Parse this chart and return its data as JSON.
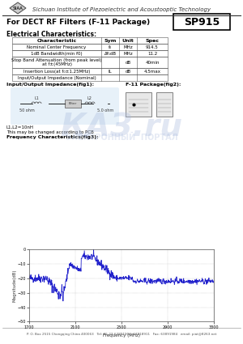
{
  "title_logo_text": "SIAA",
  "title_company": "Sichuan Institute of Piezoelectric and Acoustooptic Technology",
  "product_title": "For DECT RF Filters (F-11 Package)",
  "product_code": "SP915",
  "section_electrical": "Electrical Characteristics:",
  "table_headers": [
    "Characteristic",
    "Sym",
    "Unit",
    "Spec"
  ],
  "table_rows": [
    [
      "Nominal Center Frequency",
      "f₀",
      "MHz",
      "914.5"
    ],
    [
      "1dB Bandwidth(min f0)",
      "Δf₁dB",
      "MHz",
      "11.2"
    ],
    [
      "Stop Band Attenuation (from peak level)\nat f±(45MHz)",
      "",
      "dB",
      "40min"
    ],
    [
      "Insertion Loss(at f₀±1.25MHz)",
      "IL",
      "dB",
      "4.5max"
    ],
    [
      "Input/Output Impedance (Nominal)",
      "",
      "",
      ""
    ]
  ],
  "section_impedance": "Input/Output Impedance(fig1):",
  "section_package": "F-11 Package(fig2):",
  "circuit_note": "L1,L2=10nH",
  "circuit_note2": "This may be changed according to PCB",
  "section_freq": "Frequency Characteristics(fig3):",
  "footer": "P. O. Box 2515 Chongqing China 400063   Tel: 86-23-63891902, 63918911   Fax: 63891984   email: piat@8263.net",
  "bg_color": "#ffffff",
  "text_color": "#000000",
  "table_border_color": "#000000",
  "graph_line_color": "#2222cc",
  "graph_bg": "#ffffff",
  "graph_xlabel": "Frequency (MHz)",
  "graph_ylabel": "Magnitude(dB)",
  "graph_xlim": [
    1700,
    3300
  ],
  "graph_ylim": [
    -50,
    0
  ],
  "graph_xticks": [
    1700,
    2100,
    2500,
    2900,
    3300
  ],
  "graph_yticks": [
    -50,
    -40,
    -30,
    -20,
    -10,
    0
  ],
  "watermark_color": "#aabbdd"
}
